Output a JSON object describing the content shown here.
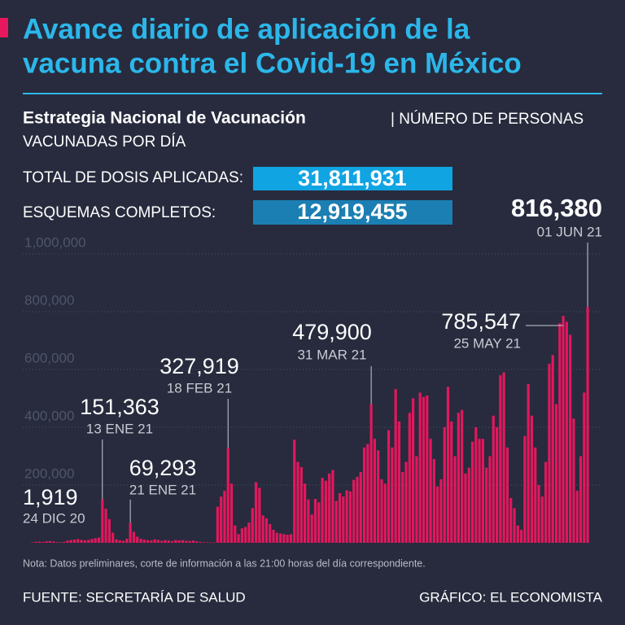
{
  "header": {
    "title_lines": [
      "Avance diario de aplicación de la",
      "vacuna contra el Covid-19 en México"
    ],
    "subtitle_bold": "Estrategia Nacional de Vacunación",
    "subtitle_lines": [
      "| NÚMERO DE PERSONAS",
      "VACUNADAS POR DÍA"
    ]
  },
  "stats": [
    {
      "label": "TOTAL DE DOSIS APLICADAS:",
      "value": "31,811,931"
    },
    {
      "label": "ESQUEMAS COMPLETOS:",
      "value": "12,919,455"
    }
  ],
  "chart_data": {
    "type": "bar",
    "color": "#e3175d",
    "ylim": [
      0,
      1000000
    ],
    "yticks": [
      {
        "value": 200000,
        "label": "200,000"
      },
      {
        "value": 400000,
        "label": "400,000"
      },
      {
        "value": 600000,
        "label": "600,000"
      },
      {
        "value": 800000,
        "label": "800,000"
      },
      {
        "value": 1000000,
        "label": "1,000,000"
      }
    ],
    "grid": true,
    "values": [
      1919,
      3200,
      4100,
      2800,
      5200,
      6100,
      4300,
      2500,
      1800,
      3000,
      7600,
      9800,
      11200,
      12800,
      10500,
      8700,
      9900,
      13400,
      15600,
      18200,
      151363,
      118000,
      82000,
      35000,
      12000,
      9000,
      7000,
      14000,
      69293,
      38000,
      21000,
      14000,
      11000,
      9000,
      8000,
      12000,
      10000,
      7000,
      9000,
      8000,
      6000,
      10000,
      8000,
      9000,
      7000,
      6000,
      8000,
      5000,
      3000,
      2000,
      1500,
      1000,
      1200,
      125000,
      160000,
      180000,
      327919,
      205000,
      60000,
      30000,
      50000,
      55000,
      70000,
      120000,
      210000,
      190000,
      95000,
      85000,
      65000,
      45000,
      35000,
      32000,
      30000,
      28000,
      30000,
      357000,
      280000,
      262000,
      205000,
      150000,
      98000,
      152000,
      140000,
      225000,
      215000,
      240000,
      252000,
      145000,
      172000,
      160000,
      182000,
      178000,
      218000,
      228000,
      245000,
      330000,
      342000,
      479900,
      360000,
      320000,
      220000,
      205000,
      390000,
      330000,
      532000,
      420000,
      245000,
      280000,
      450000,
      500000,
      300000,
      520000,
      505000,
      510000,
      360000,
      290000,
      195000,
      220000,
      400000,
      540000,
      420000,
      300000,
      450000,
      460000,
      240000,
      260000,
      350000,
      400000,
      360000,
      360000,
      260000,
      300000,
      440000,
      400000,
      580000,
      590000,
      330000,
      155000,
      120000,
      60000,
      45000,
      370000,
      550000,
      440000,
      330000,
      200000,
      160000,
      280000,
      620000,
      650000,
      480000,
      760000,
      785547,
      765000,
      720000,
      430000,
      180000,
      300000,
      520000,
      816380
    ],
    "categories": [
      "24 DIC 20",
      null,
      null,
      null,
      null,
      null,
      null,
      null,
      null,
      null,
      null,
      null,
      null,
      null,
      null,
      null,
      null,
      null,
      null,
      null,
      "13 ENE 21",
      null,
      null,
      null,
      null,
      null,
      null,
      null,
      "21 ENE 21",
      null,
      null,
      null,
      null,
      null,
      null,
      null,
      null,
      null,
      null,
      null,
      null,
      null,
      null,
      null,
      null,
      null,
      null,
      null,
      null,
      null,
      null,
      null,
      null,
      null,
      null,
      null,
      "18 FEB 21",
      null,
      null,
      null,
      null,
      null,
      null,
      null,
      null,
      null,
      null,
      null,
      null,
      null,
      null,
      null,
      null,
      null,
      null,
      null,
      null,
      null,
      null,
      null,
      null,
      null,
      null,
      null,
      null,
      null,
      null,
      null,
      null,
      null,
      null,
      null,
      null,
      null,
      null,
      null,
      null,
      "31 MAR 21",
      null,
      null,
      null,
      null,
      null,
      null,
      null,
      null,
      null,
      null,
      null,
      null,
      null,
      null,
      null,
      null,
      null,
      null,
      null,
      null,
      null,
      null,
      null,
      null,
      null,
      null,
      null,
      null,
      null,
      null,
      null,
      null,
      null,
      null,
      null,
      null,
      null,
      null,
      null,
      null,
      null,
      null,
      null,
      null,
      null,
      null,
      null,
      null,
      null,
      null,
      null,
      null,
      null,
      null,
      "25 MAY 21",
      null,
      null,
      null,
      null,
      null,
      null,
      "01 JUN 21"
    ],
    "value_labels": [
      "1,919",
      null,
      null,
      null,
      null,
      null,
      null,
      null,
      null,
      null,
      null,
      null,
      null,
      null,
      null,
      null,
      null,
      null,
      null,
      null,
      "151,363",
      null,
      null,
      null,
      null,
      null,
      null,
      null,
      "69,293",
      null,
      null,
      null,
      null,
      null,
      null,
      null,
      null,
      null,
      null,
      null,
      null,
      null,
      null,
      null,
      null,
      null,
      null,
      null,
      null,
      null,
      null,
      null,
      null,
      null,
      null,
      null,
      "327,919",
      null,
      null,
      null,
      null,
      null,
      null,
      null,
      null,
      null,
      null,
      null,
      null,
      null,
      null,
      null,
      null,
      null,
      null,
      null,
      null,
      null,
      null,
      null,
      null,
      null,
      null,
      null,
      null,
      null,
      null,
      null,
      null,
      null,
      null,
      null,
      null,
      null,
      null,
      null,
      null,
      "479,900",
      null,
      null,
      null,
      null,
      null,
      null,
      null,
      null,
      null,
      null,
      null,
      null,
      null,
      null,
      null,
      null,
      null,
      null,
      null,
      null,
      null,
      null,
      null,
      null,
      null,
      null,
      null,
      null,
      null,
      null,
      null,
      null,
      null,
      null,
      null,
      null,
      null,
      null,
      null,
      null,
      null,
      null,
      null,
      null,
      null,
      null,
      null,
      null,
      null,
      null,
      null,
      null,
      null,
      null,
      "785,547",
      null,
      null,
      null,
      null,
      null,
      null,
      "816,380"
    ]
  },
  "footer": {
    "note": "Nota: Datos preliminares, corte de información a las 21:00 horas del día correspondiente.",
    "source": "FUENTE: SECRETARÍA DE SALUD",
    "credit": "GRÁFICO: EL ECONOMISTA"
  }
}
